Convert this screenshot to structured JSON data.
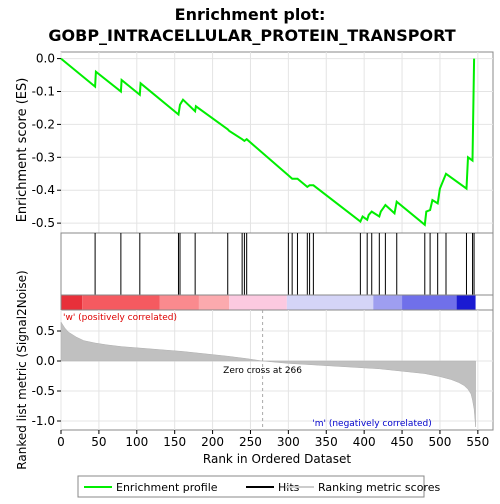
{
  "chart_data": {
    "type": "line",
    "title_line1": "Enrichment plot:",
    "title_line2": "GOBP_INTRACELLULAR_PROTEIN_TRANSPORT",
    "top_panel": {
      "ylabel": "Enrichment score (ES)",
      "ylim": [
        -0.53,
        0.02
      ],
      "yticks": [
        0.0,
        -0.1,
        -0.2,
        -0.3,
        -0.4,
        -0.5
      ],
      "ytick_labels": [
        "0.0",
        "-0.1",
        "-0.2",
        "-0.3",
        "-0.4",
        "-0.5"
      ],
      "line_color": "#00ee00",
      "series_name": "Enrichment profile",
      "x": [
        0,
        45,
        46,
        79,
        80,
        104,
        105,
        155,
        157,
        161,
        177,
        178,
        220,
        222,
        239,
        242,
        245,
        300,
        305,
        312,
        325,
        328,
        333,
        395,
        398,
        404,
        406,
        410,
        420,
        422,
        428,
        440,
        443,
        480,
        482,
        487,
        490,
        497,
        500,
        508,
        535,
        537,
        543,
        545
      ],
      "y": [
        0.0,
        -0.085,
        -0.04,
        -0.1,
        -0.065,
        -0.11,
        -0.075,
        -0.17,
        -0.14,
        -0.125,
        -0.16,
        -0.145,
        -0.215,
        -0.22,
        -0.245,
        -0.25,
        -0.245,
        -0.355,
        -0.365,
        -0.365,
        -0.39,
        -0.385,
        -0.385,
        -0.495,
        -0.48,
        -0.49,
        -0.475,
        -0.465,
        -0.48,
        -0.465,
        -0.445,
        -0.47,
        -0.435,
        -0.505,
        -0.465,
        -0.46,
        -0.43,
        -0.44,
        -0.395,
        -0.35,
        -0.395,
        -0.3,
        -0.31,
        0.0
      ]
    },
    "hits": {
      "series_name": "Hits",
      "positions": [
        45,
        79,
        104,
        155,
        157,
        177,
        220,
        239,
        242,
        245,
        300,
        305,
        312,
        325,
        328,
        333,
        395,
        404,
        410,
        420,
        428,
        443,
        480,
        487,
        497,
        508,
        535,
        543,
        545
      ]
    },
    "color_band": {
      "segments": [
        {
          "from": 0,
          "to": 28,
          "color": "#e8303a"
        },
        {
          "from": 28,
          "to": 130,
          "color": "#f55a60"
        },
        {
          "from": 130,
          "to": 182,
          "color": "#fa8a8e"
        },
        {
          "from": 182,
          "to": 222,
          "color": "#fcaaae"
        },
        {
          "from": 222,
          "to": 298,
          "color": "#fcc9e0"
        },
        {
          "from": 298,
          "to": 412,
          "color": "#d4d4f7"
        },
        {
          "from": 412,
          "to": 450,
          "color": "#9e9ef0"
        },
        {
          "from": 450,
          "to": 522,
          "color": "#7070ea"
        },
        {
          "from": 522,
          "to": 547,
          "color": "#1a1ad2"
        }
      ]
    },
    "bottom_panel": {
      "ylabel_line1": "Ranked list metric (Signal2Noise)",
      "xlabel": "Rank in Ordered Dataset",
      "xlim": [
        0,
        570
      ],
      "ylim": [
        -1.15,
        0.85
      ],
      "xticks": [
        0,
        50,
        100,
        150,
        200,
        250,
        300,
        350,
        400,
        450,
        500,
        550
      ],
      "xtick_labels": [
        "0",
        "50",
        "100",
        "150",
        "200",
        "250",
        "300",
        "350",
        "400",
        "450",
        "500",
        "550"
      ],
      "yticks": [
        0.5,
        0.0,
        -0.5,
        -1.0
      ],
      "ytick_labels": [
        "0.5",
        "0.0",
        "-0.5",
        "-1.0"
      ],
      "series_name": "Ranking metric scores",
      "metric_x": [
        0,
        5,
        10,
        20,
        30,
        45,
        60,
        80,
        100,
        130,
        160,
        190,
        220,
        245,
        266,
        300,
        340,
        380,
        420,
        450,
        480,
        500,
        515,
        525,
        532,
        537,
        541,
        543,
        545,
        547
      ],
      "metric_y": [
        0.65,
        0.55,
        0.48,
        0.4,
        0.34,
        0.3,
        0.27,
        0.24,
        0.22,
        0.19,
        0.16,
        0.12,
        0.08,
        0.04,
        0.0,
        -0.04,
        -0.07,
        -0.1,
        -0.13,
        -0.17,
        -0.21,
        -0.26,
        -0.31,
        -0.36,
        -0.41,
        -0.47,
        -0.55,
        -0.65,
        -0.8,
        -1.1
      ],
      "zero_cross_rank": 266,
      "zero_cross_text": "Zero cross at 266",
      "pos_label": "'w' (positively correlated)",
      "neg_label": "'m' (negatively correlated)",
      "pos_label_color": "#dd0000",
      "neg_label_color": "#0000cc"
    },
    "legend": {
      "items": [
        {
          "label": "Enrichment profile",
          "color": "#00ee00"
        },
        {
          "label": "Hits",
          "color": "#000000"
        },
        {
          "label": "Ranking metric scores",
          "color": "#cccccc"
        }
      ]
    }
  }
}
